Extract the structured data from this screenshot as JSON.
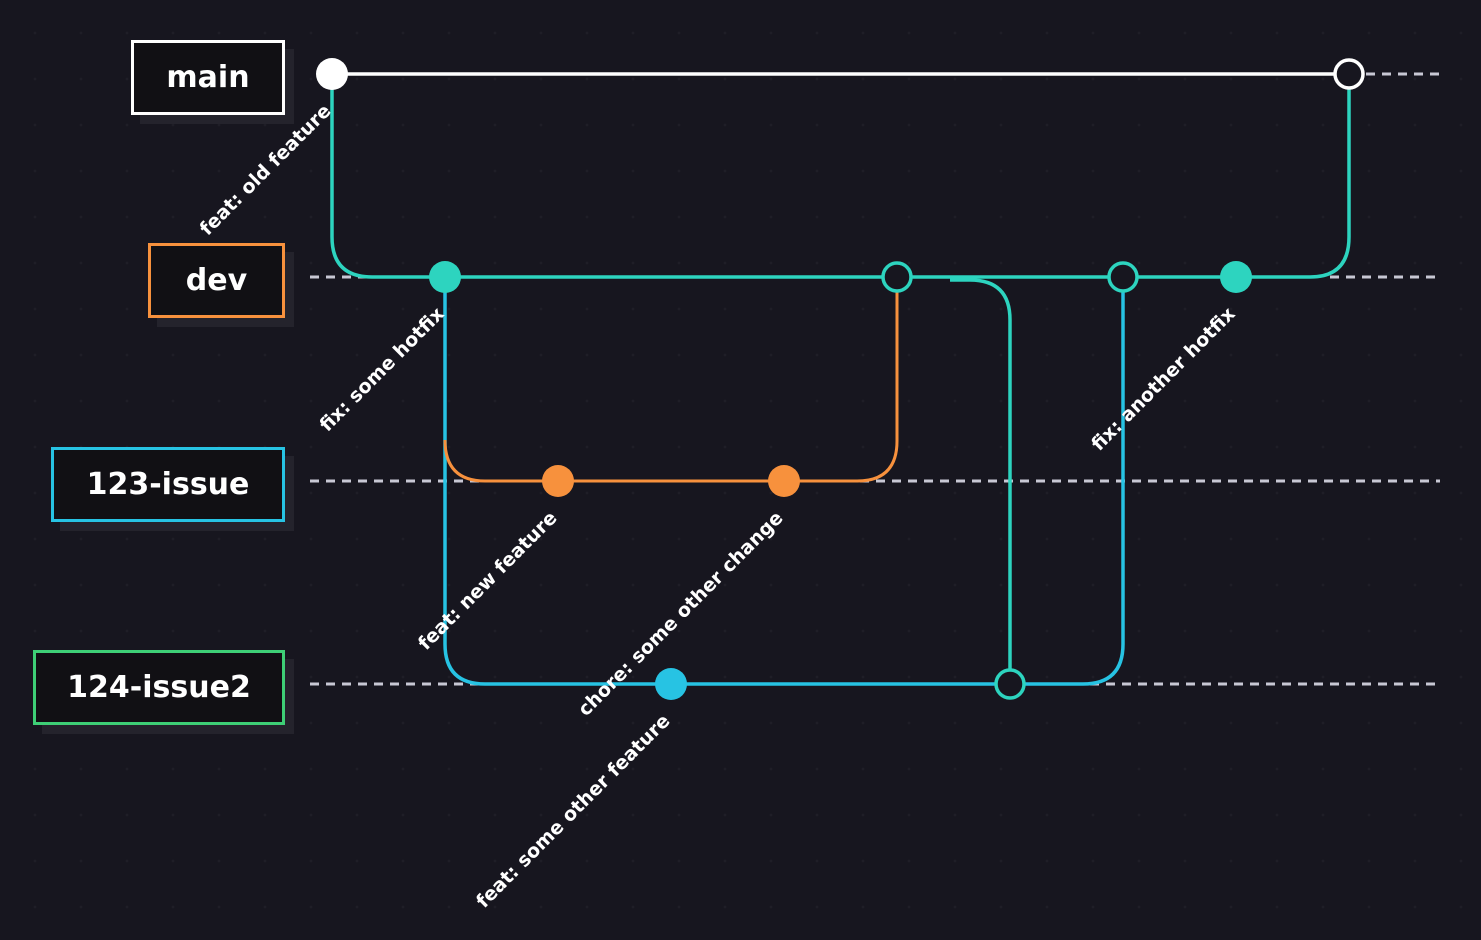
{
  "branches": {
    "main": {
      "label": "main",
      "color": "#ffffff"
    },
    "dev": {
      "label": "dev",
      "color": "#f7913d"
    },
    "issue123": {
      "label": "123-issue",
      "color": "#27c3e3"
    },
    "issue124": {
      "label": "124-issue2",
      "color": "#3ecf76"
    }
  },
  "line_colors": {
    "main": "#ffffff",
    "dev": "#2dd4bf",
    "issue123": "#f7913d",
    "issue124": "#27c3e3",
    "dashed": "#c8c8d4"
  },
  "commits": {
    "old_feature": "feat: old feature",
    "some_hotfix": "fix: some hotfix",
    "new_feature": "feat: new feature",
    "other_change": "chore: some other change",
    "other_feature": "feat: some other feature",
    "another_hotfix": "fix: another hotfix"
  }
}
